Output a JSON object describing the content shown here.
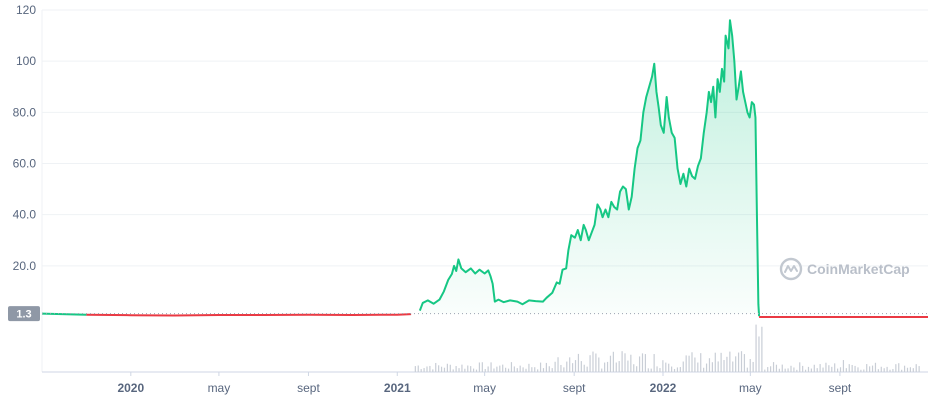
{
  "watermark": {
    "text": "CoinMarketCap"
  },
  "current_price_badge": "1.3",
  "colors": {
    "up": "#16c784",
    "down": "#ea3943",
    "grid": "#eff2f5",
    "axis_text": "#58667e",
    "badge_bg": "#8f98a6",
    "volume": "#c9ced6"
  },
  "chart_data": {
    "type": "area",
    "title": "",
    "xlabel": "",
    "ylabel": "",
    "ylim": [
      0,
      120
    ],
    "yticks": [
      {
        "value": 20,
        "label": "20.0"
      },
      {
        "value": 40,
        "label": "40.0"
      },
      {
        "value": 60,
        "label": "60.0"
      },
      {
        "value": 80,
        "label": "80.0"
      },
      {
        "value": 100,
        "label": "100"
      },
      {
        "value": 120,
        "label": "120"
      }
    ],
    "xlim": [
      "2019-09-01",
      "2022-12-31"
    ],
    "xticks": [
      {
        "date": "2020-01-01",
        "label": "2020",
        "bold": true
      },
      {
        "date": "2020-05-01",
        "label": "may",
        "bold": false
      },
      {
        "date": "2020-09-01",
        "label": "sept",
        "bold": false
      },
      {
        "date": "2021-01-01",
        "label": "2021",
        "bold": true
      },
      {
        "date": "2021-05-01",
        "label": "may",
        "bold": false
      },
      {
        "date": "2021-09-01",
        "label": "sept",
        "bold": false
      },
      {
        "date": "2022-01-01",
        "label": "2022",
        "bold": true
      },
      {
        "date": "2022-05-01",
        "label": "may",
        "bold": false
      },
      {
        "date": "2022-09-01",
        "label": "sept",
        "bold": false
      }
    ],
    "reference_value": 1.3,
    "series": [
      {
        "points": [
          [
            "2019-09-01",
            1.3
          ],
          [
            "2019-11-01",
            0.9
          ],
          [
            "2020-01-01",
            0.7
          ],
          [
            "2020-03-01",
            0.6
          ],
          [
            "2020-05-01",
            0.8
          ],
          [
            "2020-07-01",
            0.8
          ],
          [
            "2020-09-01",
            0.9
          ],
          [
            "2020-11-01",
            0.8
          ],
          [
            "2021-01-01",
            0.9
          ],
          [
            "2021-01-20",
            1.1
          ],
          [
            "2021-02-01",
            2.5
          ],
          [
            "2021-02-05",
            5.5
          ],
          [
            "2021-02-12",
            6.5
          ],
          [
            "2021-02-20",
            5.2
          ],
          [
            "2021-02-28",
            6.8
          ],
          [
            "2021-03-06",
            10.0
          ],
          [
            "2021-03-12",
            14.5
          ],
          [
            "2021-03-17",
            16.8
          ],
          [
            "2021-03-20",
            20.0
          ],
          [
            "2021-03-23",
            18.0
          ],
          [
            "2021-03-26",
            22.5
          ],
          [
            "2021-03-30",
            19.0
          ],
          [
            "2021-04-05",
            17.5
          ],
          [
            "2021-04-12",
            19.0
          ],
          [
            "2021-04-18",
            17.0
          ],
          [
            "2021-04-24",
            18.5
          ],
          [
            "2021-05-01",
            17.0
          ],
          [
            "2021-05-06",
            18.2
          ],
          [
            "2021-05-09",
            16.0
          ],
          [
            "2021-05-12",
            13.0
          ],
          [
            "2021-05-15",
            6.0
          ],
          [
            "2021-05-20",
            6.8
          ],
          [
            "2021-05-27",
            5.8
          ],
          [
            "2021-06-05",
            6.5
          ],
          [
            "2021-06-15",
            6.0
          ],
          [
            "2021-06-22",
            5.0
          ],
          [
            "2021-07-01",
            6.5
          ],
          [
            "2021-07-10",
            6.2
          ],
          [
            "2021-07-20",
            6.0
          ],
          [
            "2021-07-25",
            7.5
          ],
          [
            "2021-08-02",
            9.5
          ],
          [
            "2021-08-08",
            13.5
          ],
          [
            "2021-08-12",
            13.0
          ],
          [
            "2021-08-16",
            18.5
          ],
          [
            "2021-08-21",
            19.0
          ],
          [
            "2021-08-24",
            26.0
          ],
          [
            "2021-08-28",
            32.0
          ],
          [
            "2021-09-02",
            31.0
          ],
          [
            "2021-09-06",
            34.0
          ],
          [
            "2021-09-10",
            30.0
          ],
          [
            "2021-09-14",
            36.0
          ],
          [
            "2021-09-17",
            34.0
          ],
          [
            "2021-09-21",
            30.0
          ],
          [
            "2021-09-25",
            33.0
          ],
          [
            "2021-09-29",
            36.0
          ],
          [
            "2021-10-03",
            44.0
          ],
          [
            "2021-10-07",
            42.0
          ],
          [
            "2021-10-10",
            39.0
          ],
          [
            "2021-10-14",
            42.0
          ],
          [
            "2021-10-18",
            39.0
          ],
          [
            "2021-10-22",
            45.0
          ],
          [
            "2021-10-26",
            43.0
          ],
          [
            "2021-10-30",
            42.0
          ],
          [
            "2021-11-03",
            49.0
          ],
          [
            "2021-11-07",
            51.0
          ],
          [
            "2021-11-11",
            50.0
          ],
          [
            "2021-11-15",
            42.0
          ],
          [
            "2021-11-19",
            47.0
          ],
          [
            "2021-11-23",
            58.0
          ],
          [
            "2021-11-27",
            66.0
          ],
          [
            "2021-12-01",
            69.0
          ],
          [
            "2021-12-05",
            80.0
          ],
          [
            "2021-12-09",
            86.0
          ],
          [
            "2021-12-13",
            90.0
          ],
          [
            "2021-12-17",
            94.0
          ],
          [
            "2021-12-20",
            99.0
          ],
          [
            "2021-12-23",
            88.0
          ],
          [
            "2021-12-26",
            82.0
          ],
          [
            "2021-12-29",
            75.0
          ],
          [
            "2022-01-02",
            72.0
          ],
          [
            "2022-01-06",
            86.0
          ],
          [
            "2022-01-09",
            78.0
          ],
          [
            "2022-01-13",
            72.0
          ],
          [
            "2022-01-17",
            70.0
          ],
          [
            "2022-01-21",
            58.0
          ],
          [
            "2022-01-25",
            52.0
          ],
          [
            "2022-01-29",
            56.0
          ],
          [
            "2022-02-02",
            51.0
          ],
          [
            "2022-02-06",
            58.0
          ],
          [
            "2022-02-10",
            55.0
          ],
          [
            "2022-02-14",
            54.0
          ],
          [
            "2022-02-18",
            59.0
          ],
          [
            "2022-02-22",
            62.0
          ],
          [
            "2022-02-26",
            72.0
          ],
          [
            "2022-03-02",
            80.0
          ],
          [
            "2022-03-05",
            88.0
          ],
          [
            "2022-03-08",
            84.0
          ],
          [
            "2022-03-11",
            90.0
          ],
          [
            "2022-03-14",
            78.0
          ],
          [
            "2022-03-17",
            93.0
          ],
          [
            "2022-03-20",
            88.0
          ],
          [
            "2022-03-23",
            97.0
          ],
          [
            "2022-03-26",
            92.0
          ],
          [
            "2022-03-28",
            110.0
          ],
          [
            "2022-04-01",
            105.0
          ],
          [
            "2022-04-03",
            116.0
          ],
          [
            "2022-04-06",
            110.0
          ],
          [
            "2022-04-09",
            100.0
          ],
          [
            "2022-04-12",
            85.0
          ],
          [
            "2022-04-15",
            90.0
          ],
          [
            "2022-04-18",
            96.0
          ],
          [
            "2022-04-21",
            88.0
          ],
          [
            "2022-04-24",
            84.0
          ],
          [
            "2022-04-27",
            80.0
          ],
          [
            "2022-04-30",
            78.0
          ],
          [
            "2022-05-03",
            84.0
          ],
          [
            "2022-05-06",
            83.0
          ],
          [
            "2022-05-08",
            78.0
          ],
          [
            "2022-05-10",
            40.0
          ],
          [
            "2022-05-12",
            5.0
          ],
          [
            "2022-05-13",
            0.3
          ]
        ]
      },
      {
        "points": [
          [
            "2022-05-13",
            0.0
          ],
          [
            "2022-06-01",
            0.0
          ],
          [
            "2022-08-01",
            0.0
          ],
          [
            "2022-10-01",
            0.0
          ],
          [
            "2022-12-31",
            0.0
          ]
        ]
      }
    ]
  }
}
